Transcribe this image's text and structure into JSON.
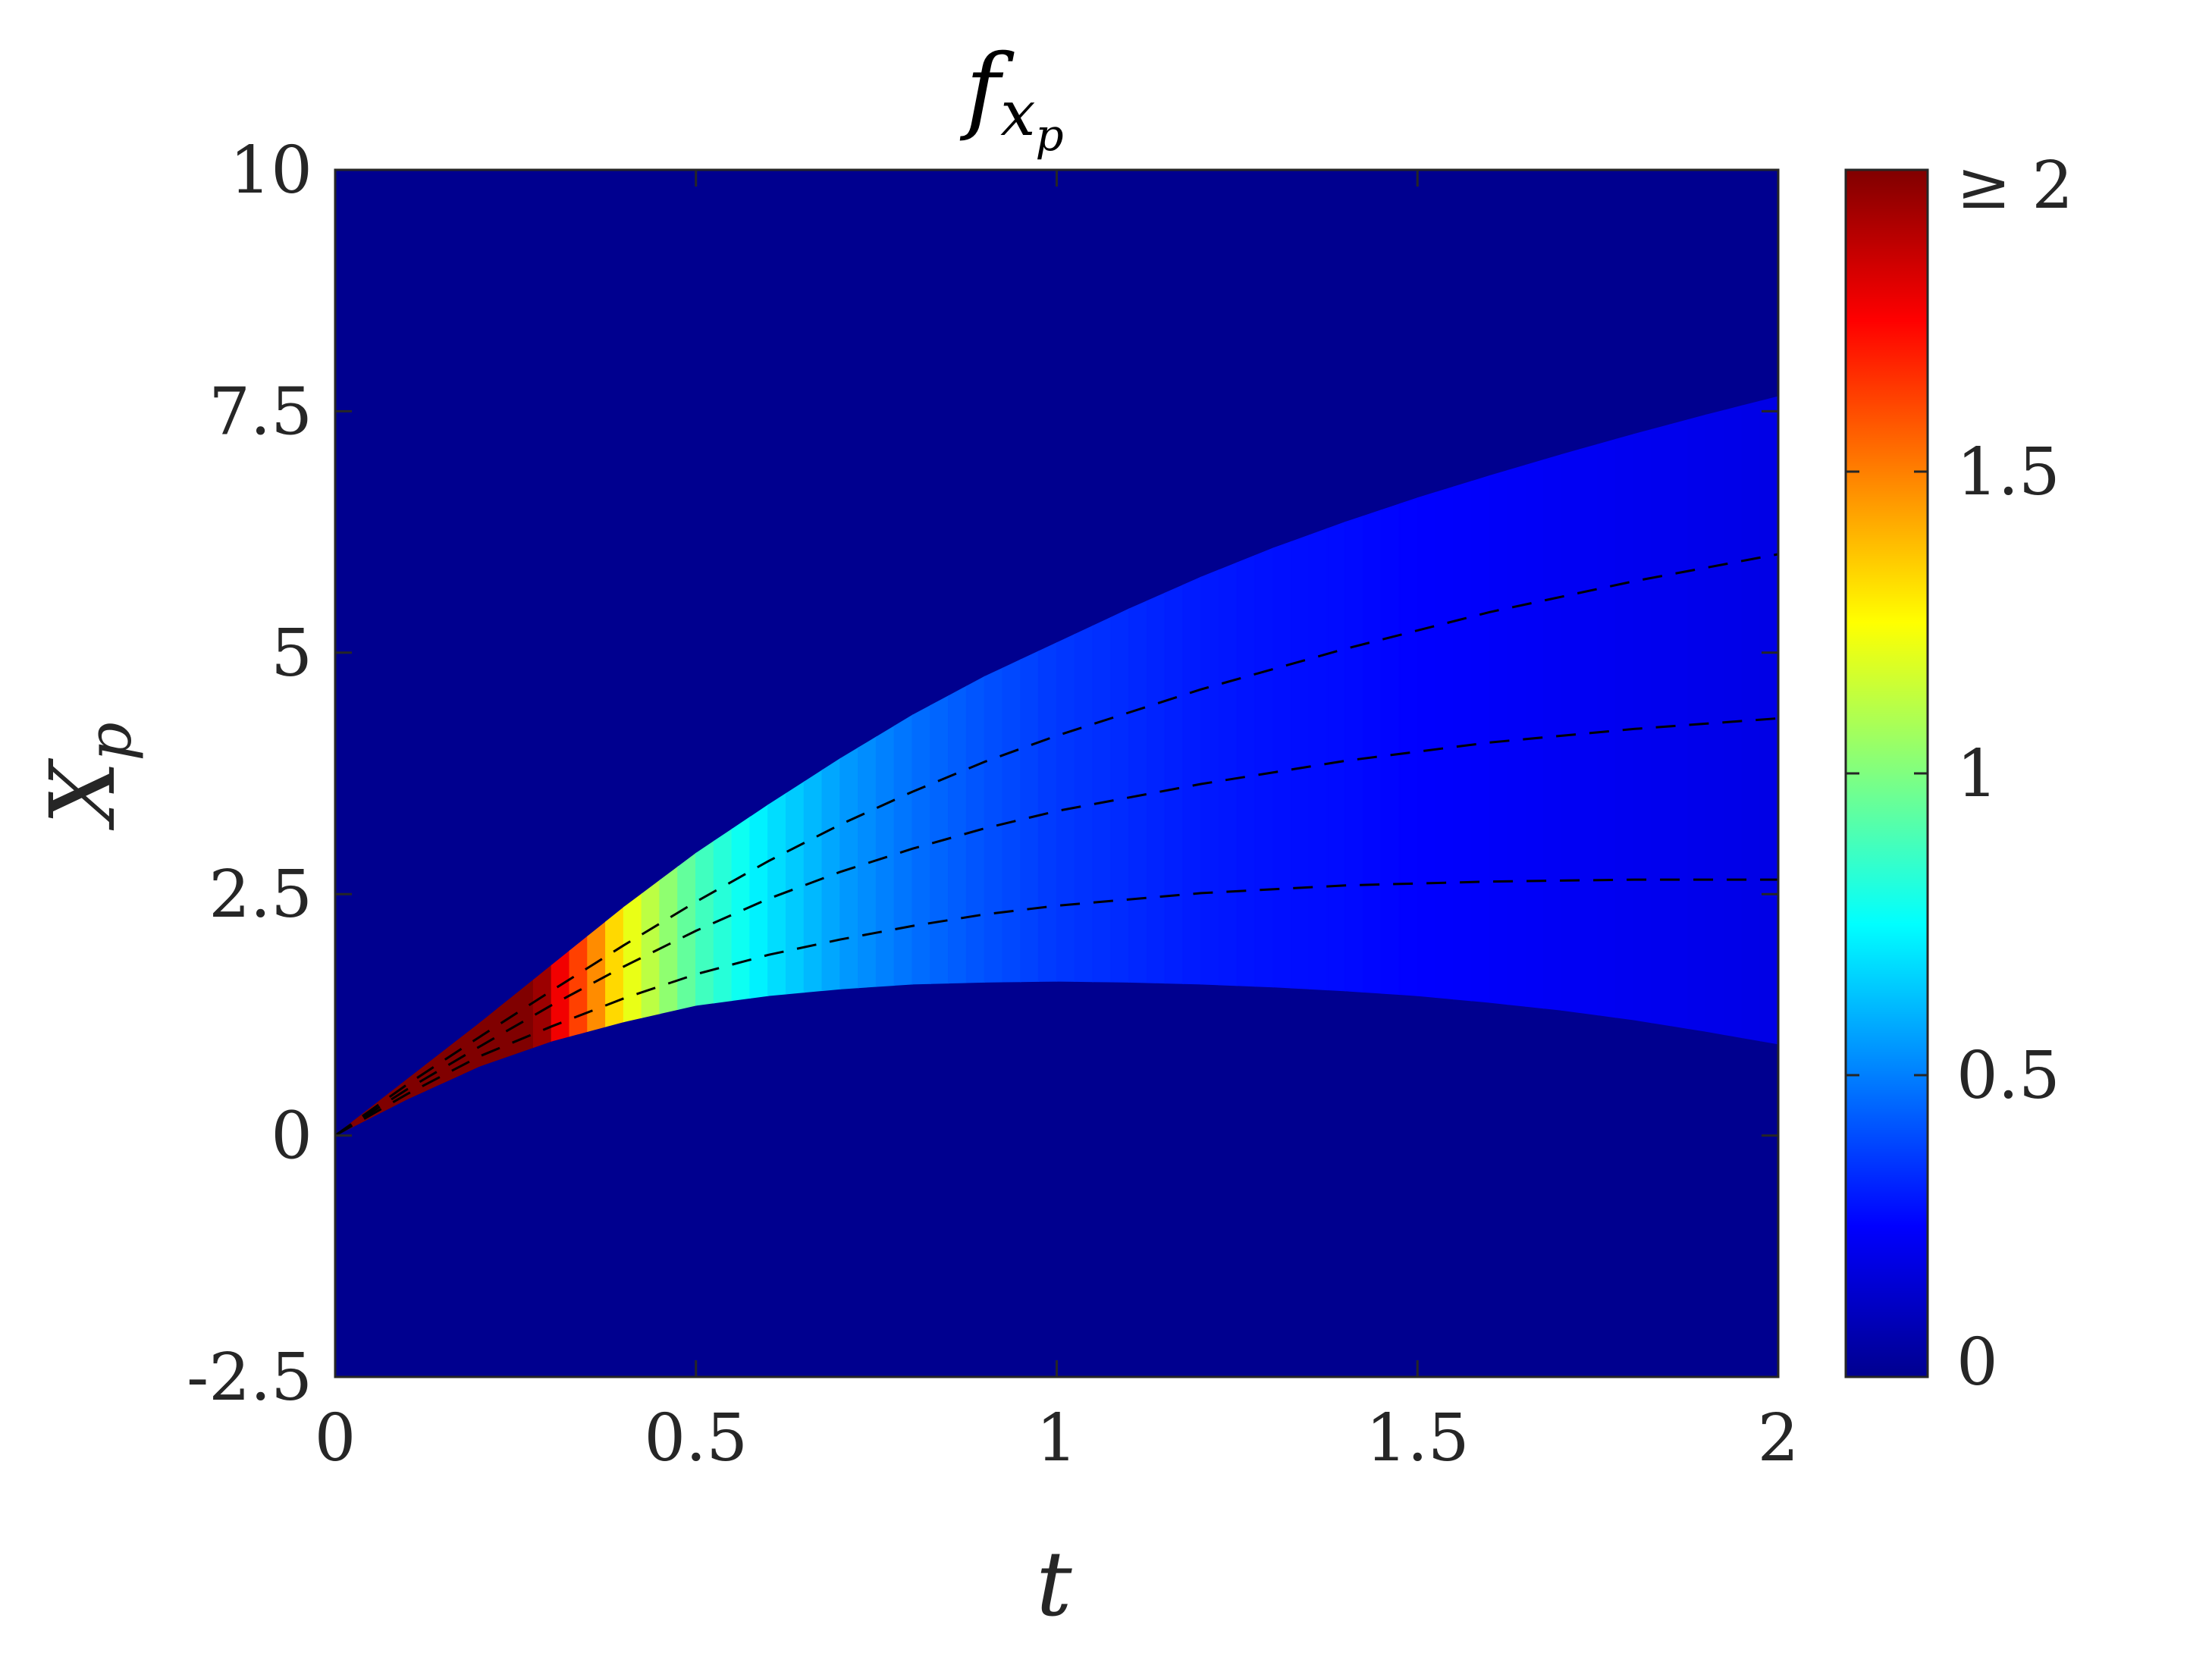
{
  "chart_data": {
    "type": "heatmap",
    "title": {
      "base": "f",
      "subscript": "x",
      "sub_subscript": "p"
    },
    "xlabel": "t",
    "ylabel": {
      "base": "X",
      "subscript": "p"
    },
    "xlim": [
      0,
      2
    ],
    "ylim": [
      -2.5,
      10
    ],
    "x_ticks": [
      0,
      0.5,
      1,
      1.5,
      2
    ],
    "x_tick_labels": [
      "0",
      "0.5",
      "1",
      "1.5",
      "2"
    ],
    "y_ticks": [
      -2.5,
      0,
      2.5,
      5,
      7.5,
      10
    ],
    "y_tick_labels": [
      "-2.5",
      "0",
      "2.5",
      "5",
      "7.5",
      "10"
    ],
    "colormap": "jet",
    "colorbar": {
      "range": [
        0,
        2
      ],
      "ticks": [
        0,
        0.5,
        1,
        1.5,
        2
      ],
      "tick_labels": [
        "0",
        "0.5",
        "1",
        "1.5",
        "≥ 2"
      ]
    },
    "background_value": 0,
    "support_region": {
      "description_of_bounds": "nonzero density band between lower and upper boundary curves",
      "t": [
        0,
        0.1,
        0.2,
        0.3,
        0.4,
        0.5,
        0.6,
        0.7,
        0.8,
        0.9,
        1.0,
        1.1,
        1.2,
        1.3,
        1.4,
        1.5,
        1.6,
        1.7,
        1.8,
        1.9,
        2.0
      ],
      "upper": [
        0,
        0.58,
        1.16,
        1.76,
        2.36,
        2.92,
        3.42,
        3.9,
        4.35,
        4.75,
        5.1,
        5.45,
        5.78,
        6.08,
        6.35,
        6.6,
        6.83,
        7.05,
        7.26,
        7.46,
        7.65
      ],
      "lower": [
        0,
        0.38,
        0.72,
        0.98,
        1.18,
        1.35,
        1.45,
        1.52,
        1.57,
        1.59,
        1.6,
        1.59,
        1.57,
        1.54,
        1.5,
        1.45,
        1.38,
        1.3,
        1.2,
        1.08,
        0.95
      ],
      "density": [
        3.0,
        3.0,
        2.6,
        1.85,
        1.25,
        0.9,
        0.7,
        0.56,
        0.47,
        0.41,
        0.36,
        0.33,
        0.3,
        0.28,
        0.27,
        0.25,
        0.24,
        0.23,
        0.22,
        0.21,
        0.2
      ]
    },
    "series": [
      {
        "style": "dashed",
        "color": "#000000",
        "t": [
          0,
          0.1,
          0.2,
          0.3,
          0.4,
          0.5,
          0.6,
          0.7,
          0.8,
          0.9,
          1.0,
          1.2,
          1.4,
          1.6,
          1.8,
          2.0
        ],
        "values": [
          0,
          0.43,
          0.82,
          1.13,
          1.42,
          1.67,
          1.87,
          2.03,
          2.17,
          2.29,
          2.38,
          2.51,
          2.59,
          2.63,
          2.65,
          2.65
        ]
      },
      {
        "style": "dashed",
        "color": "#000000",
        "t": [
          0,
          0.1,
          0.2,
          0.3,
          0.4,
          0.5,
          0.6,
          0.7,
          0.8,
          0.9,
          1.0,
          1.2,
          1.4,
          1.6,
          1.8,
          2.0
        ],
        "values": [
          0,
          0.48,
          0.92,
          1.35,
          1.75,
          2.12,
          2.45,
          2.73,
          2.97,
          3.18,
          3.36,
          3.64,
          3.88,
          4.07,
          4.21,
          4.32
        ]
      },
      {
        "style": "dashed",
        "color": "#000000",
        "t": [
          0,
          0.1,
          0.2,
          0.3,
          0.4,
          0.5,
          0.6,
          0.7,
          0.8,
          0.9,
          1.0,
          1.2,
          1.4,
          1.6,
          1.8,
          2.0
        ],
        "values": [
          0,
          0.53,
          1.02,
          1.5,
          1.97,
          2.42,
          2.84,
          3.22,
          3.56,
          3.87,
          4.14,
          4.62,
          5.04,
          5.42,
          5.74,
          6.02
        ]
      }
    ]
  }
}
